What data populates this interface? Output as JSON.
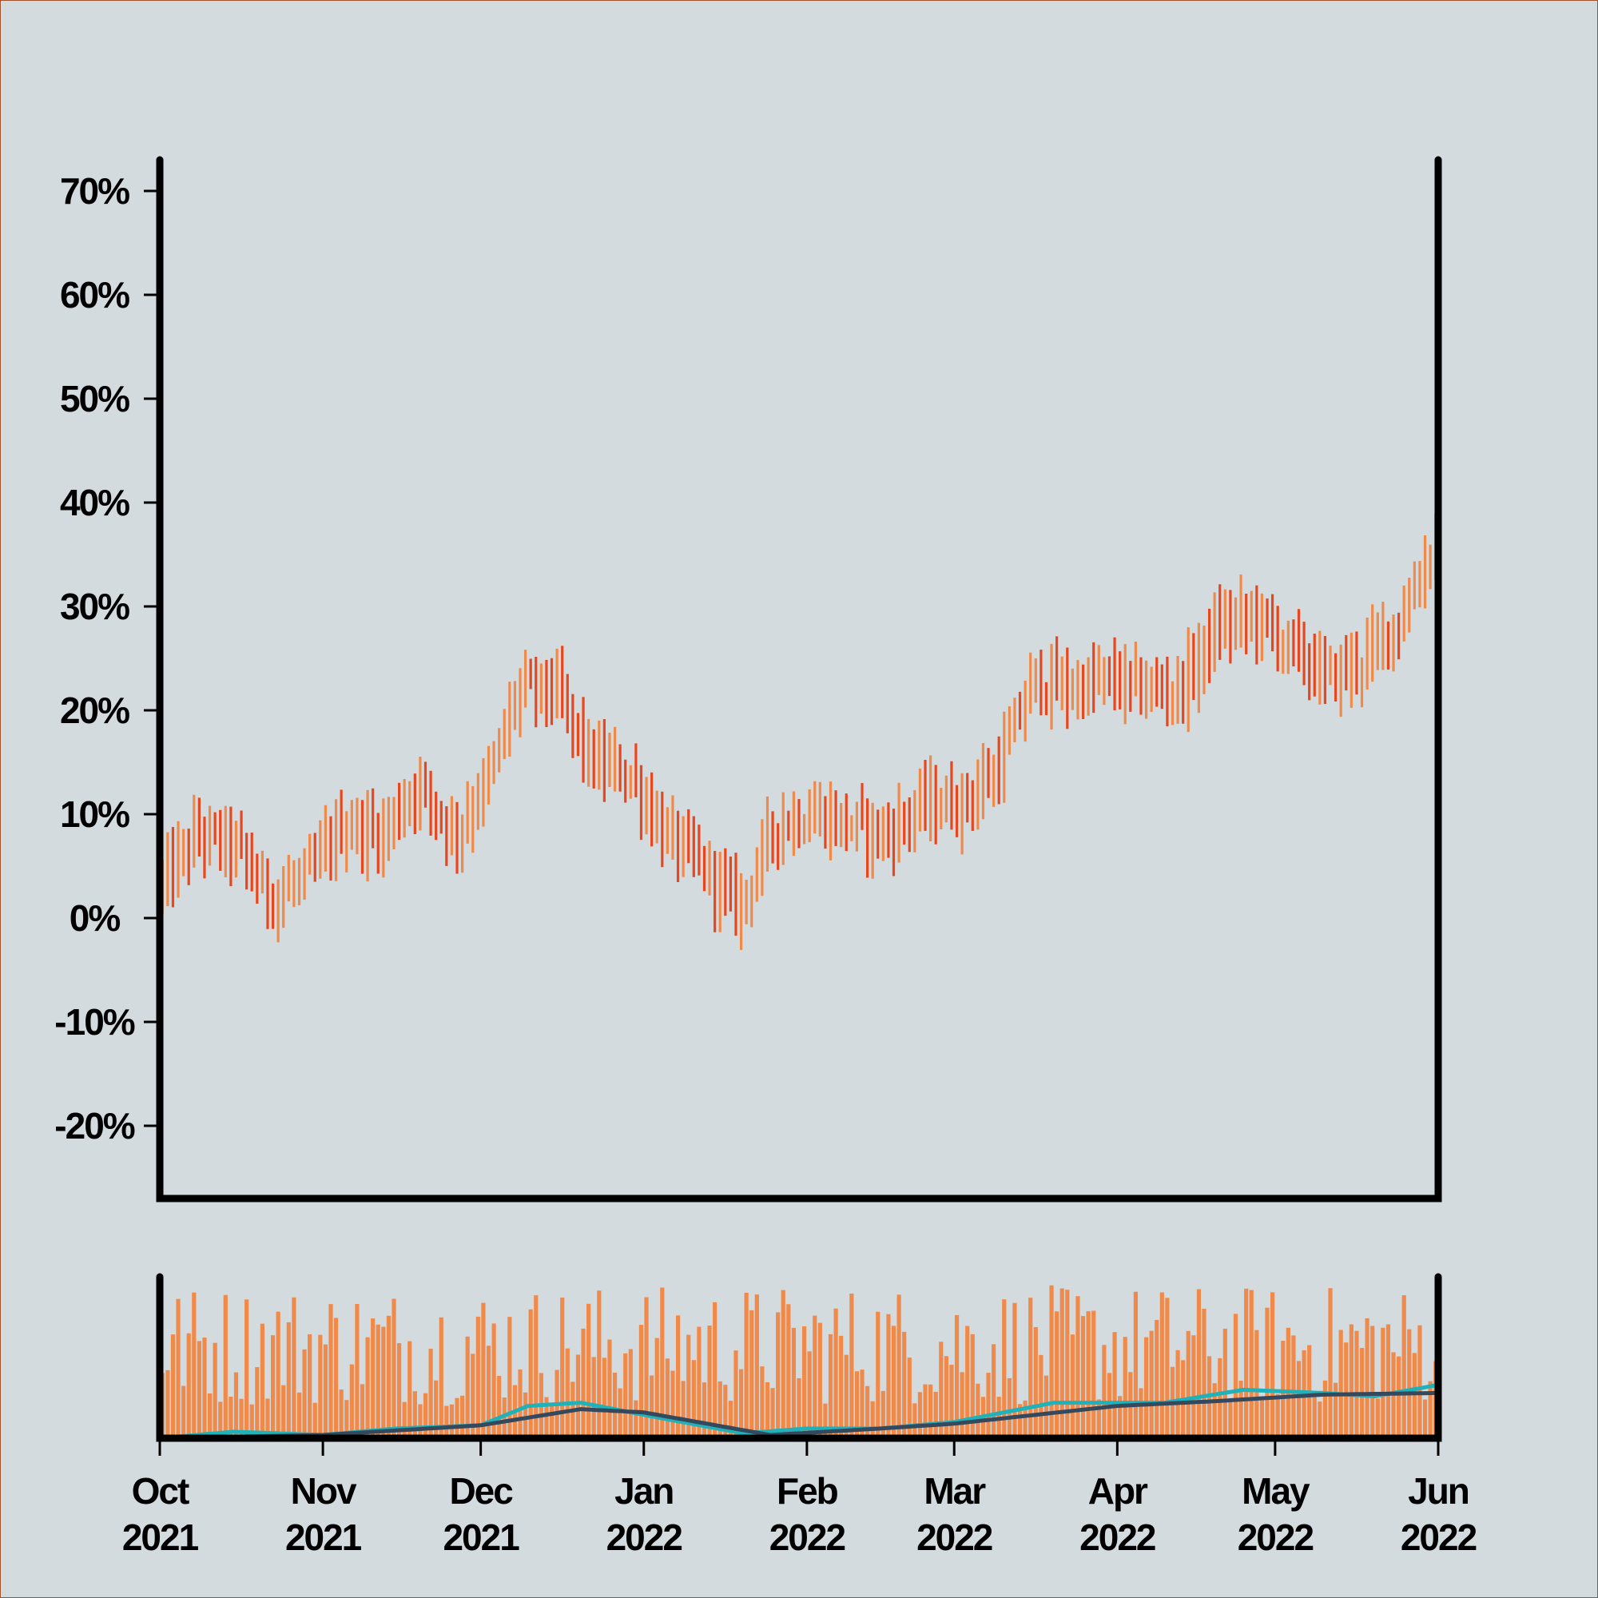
{
  "chart_data": [
    {
      "type": "ohlc",
      "title": "",
      "xlabel": "",
      "ylabel": "",
      "x_range": [
        "2021-10-01",
        "2022-06-01"
      ],
      "ylim": [
        -27,
        73
      ],
      "y_ticks": [
        "70%",
        "60%",
        "50%",
        "40%",
        "30%",
        "20%",
        "10%",
        "0%",
        "-10%",
        "-20%"
      ],
      "y_tick_values": [
        70,
        60,
        50,
        40,
        30,
        20,
        10,
        0,
        -10,
        -20
      ],
      "grid": false,
      "legend": "none",
      "up_color": "#f08a4b",
      "down_color": "#e8461d",
      "approx_path": [
        {
          "date": "2021-10-01",
          "value": 3
        },
        {
          "date": "2021-10-08",
          "value": 8
        },
        {
          "date": "2021-10-15",
          "value": 7
        },
        {
          "date": "2021-10-22",
          "value": 2
        },
        {
          "date": "2021-10-29",
          "value": 4
        },
        {
          "date": "2021-11-05",
          "value": 9
        },
        {
          "date": "2021-11-12",
          "value": 8
        },
        {
          "date": "2021-11-19",
          "value": 13
        },
        {
          "date": "2021-11-26",
          "value": 8
        },
        {
          "date": "2021-12-03",
          "value": 14
        },
        {
          "date": "2021-12-08",
          "value": 22
        },
        {
          "date": "2021-12-15",
          "value": 22
        },
        {
          "date": "2021-12-22",
          "value": 15
        },
        {
          "date": "2021-12-29",
          "value": 14
        },
        {
          "date": "2022-01-05",
          "value": 8
        },
        {
          "date": "2022-01-12",
          "value": 5
        },
        {
          "date": "2022-01-19",
          "value": 1
        },
        {
          "date": "2022-01-26",
          "value": 9
        },
        {
          "date": "2022-02-02",
          "value": 10
        },
        {
          "date": "2022-02-09",
          "value": 9
        },
        {
          "date": "2022-02-16",
          "value": 8
        },
        {
          "date": "2022-02-23",
          "value": 11
        },
        {
          "date": "2022-03-02",
          "value": 11
        },
        {
          "date": "2022-03-09",
          "value": 14
        },
        {
          "date": "2022-03-16",
          "value": 23
        },
        {
          "date": "2022-03-23",
          "value": 22
        },
        {
          "date": "2022-03-30",
          "value": 23
        },
        {
          "date": "2022-04-06",
          "value": 22
        },
        {
          "date": "2022-04-13",
          "value": 22
        },
        {
          "date": "2022-04-20",
          "value": 28
        },
        {
          "date": "2022-04-27",
          "value": 29
        },
        {
          "date": "2022-05-04",
          "value": 26
        },
        {
          "date": "2022-05-11",
          "value": 23
        },
        {
          "date": "2022-05-18",
          "value": 25
        },
        {
          "date": "2022-05-25",
          "value": 29
        },
        {
          "date": "2022-06-01",
          "value": 37
        }
      ]
    },
    {
      "type": "bar",
      "title": "",
      "series": [
        {
          "kind": "bar",
          "color": "#f08a4b"
        },
        {
          "kind": "line",
          "color": "#20b2b8"
        },
        {
          "kind": "line",
          "color": "#34495e"
        }
      ],
      "x_ticks": [
        {
          "month": "Oct",
          "year": "2021",
          "date": "2021-10-01"
        },
        {
          "month": "Nov",
          "year": "2021",
          "date": "2021-11-01"
        },
        {
          "month": "Dec",
          "year": "2021",
          "date": "2021-12-01"
        },
        {
          "month": "Jan",
          "year": "2022",
          "date": "2022-01-01"
        },
        {
          "month": "Feb",
          "year": "2022",
          "date": "2022-02-01"
        },
        {
          "month": "Mar",
          "year": "2022",
          "date": "2022-03-01"
        },
        {
          "month": "Apr",
          "year": "2022",
          "date": "2022-04-01"
        },
        {
          "month": "May",
          "year": "2022",
          "date": "2022-05-01"
        },
        {
          "month": "Jun",
          "year": "2022",
          "date": "2022-06-01"
        }
      ],
      "approx_fast_line": [
        {
          "date": "2021-10-01",
          "value": 0.0
        },
        {
          "date": "2021-10-15",
          "value": 0.04
        },
        {
          "date": "2021-11-01",
          "value": 0.02
        },
        {
          "date": "2021-11-15",
          "value": 0.06
        },
        {
          "date": "2021-12-01",
          "value": 0.08
        },
        {
          "date": "2021-12-10",
          "value": 0.2
        },
        {
          "date": "2021-12-20",
          "value": 0.22
        },
        {
          "date": "2022-01-05",
          "value": 0.12
        },
        {
          "date": "2022-01-20",
          "value": 0.03
        },
        {
          "date": "2022-02-01",
          "value": 0.06
        },
        {
          "date": "2022-02-15",
          "value": 0.06
        },
        {
          "date": "2022-03-01",
          "value": 0.1
        },
        {
          "date": "2022-03-20",
          "value": 0.22
        },
        {
          "date": "2022-04-10",
          "value": 0.22
        },
        {
          "date": "2022-04-25",
          "value": 0.3
        },
        {
          "date": "2022-05-10",
          "value": 0.28
        },
        {
          "date": "2022-05-20",
          "value": 0.26
        },
        {
          "date": "2022-06-01",
          "value": 0.33
        }
      ],
      "approx_slow_line": [
        {
          "date": "2021-10-01",
          "value": 0.0
        },
        {
          "date": "2021-11-01",
          "value": 0.02
        },
        {
          "date": "2021-12-01",
          "value": 0.08
        },
        {
          "date": "2021-12-20",
          "value": 0.18
        },
        {
          "date": "2022-01-01",
          "value": 0.16
        },
        {
          "date": "2022-01-25",
          "value": 0.02
        },
        {
          "date": "2022-02-15",
          "value": 0.06
        },
        {
          "date": "2022-03-01",
          "value": 0.09
        },
        {
          "date": "2022-04-01",
          "value": 0.2
        },
        {
          "date": "2022-04-20",
          "value": 0.23
        },
        {
          "date": "2022-05-10",
          "value": 0.27
        },
        {
          "date": "2022-06-01",
          "value": 0.28
        }
      ]
    }
  ]
}
